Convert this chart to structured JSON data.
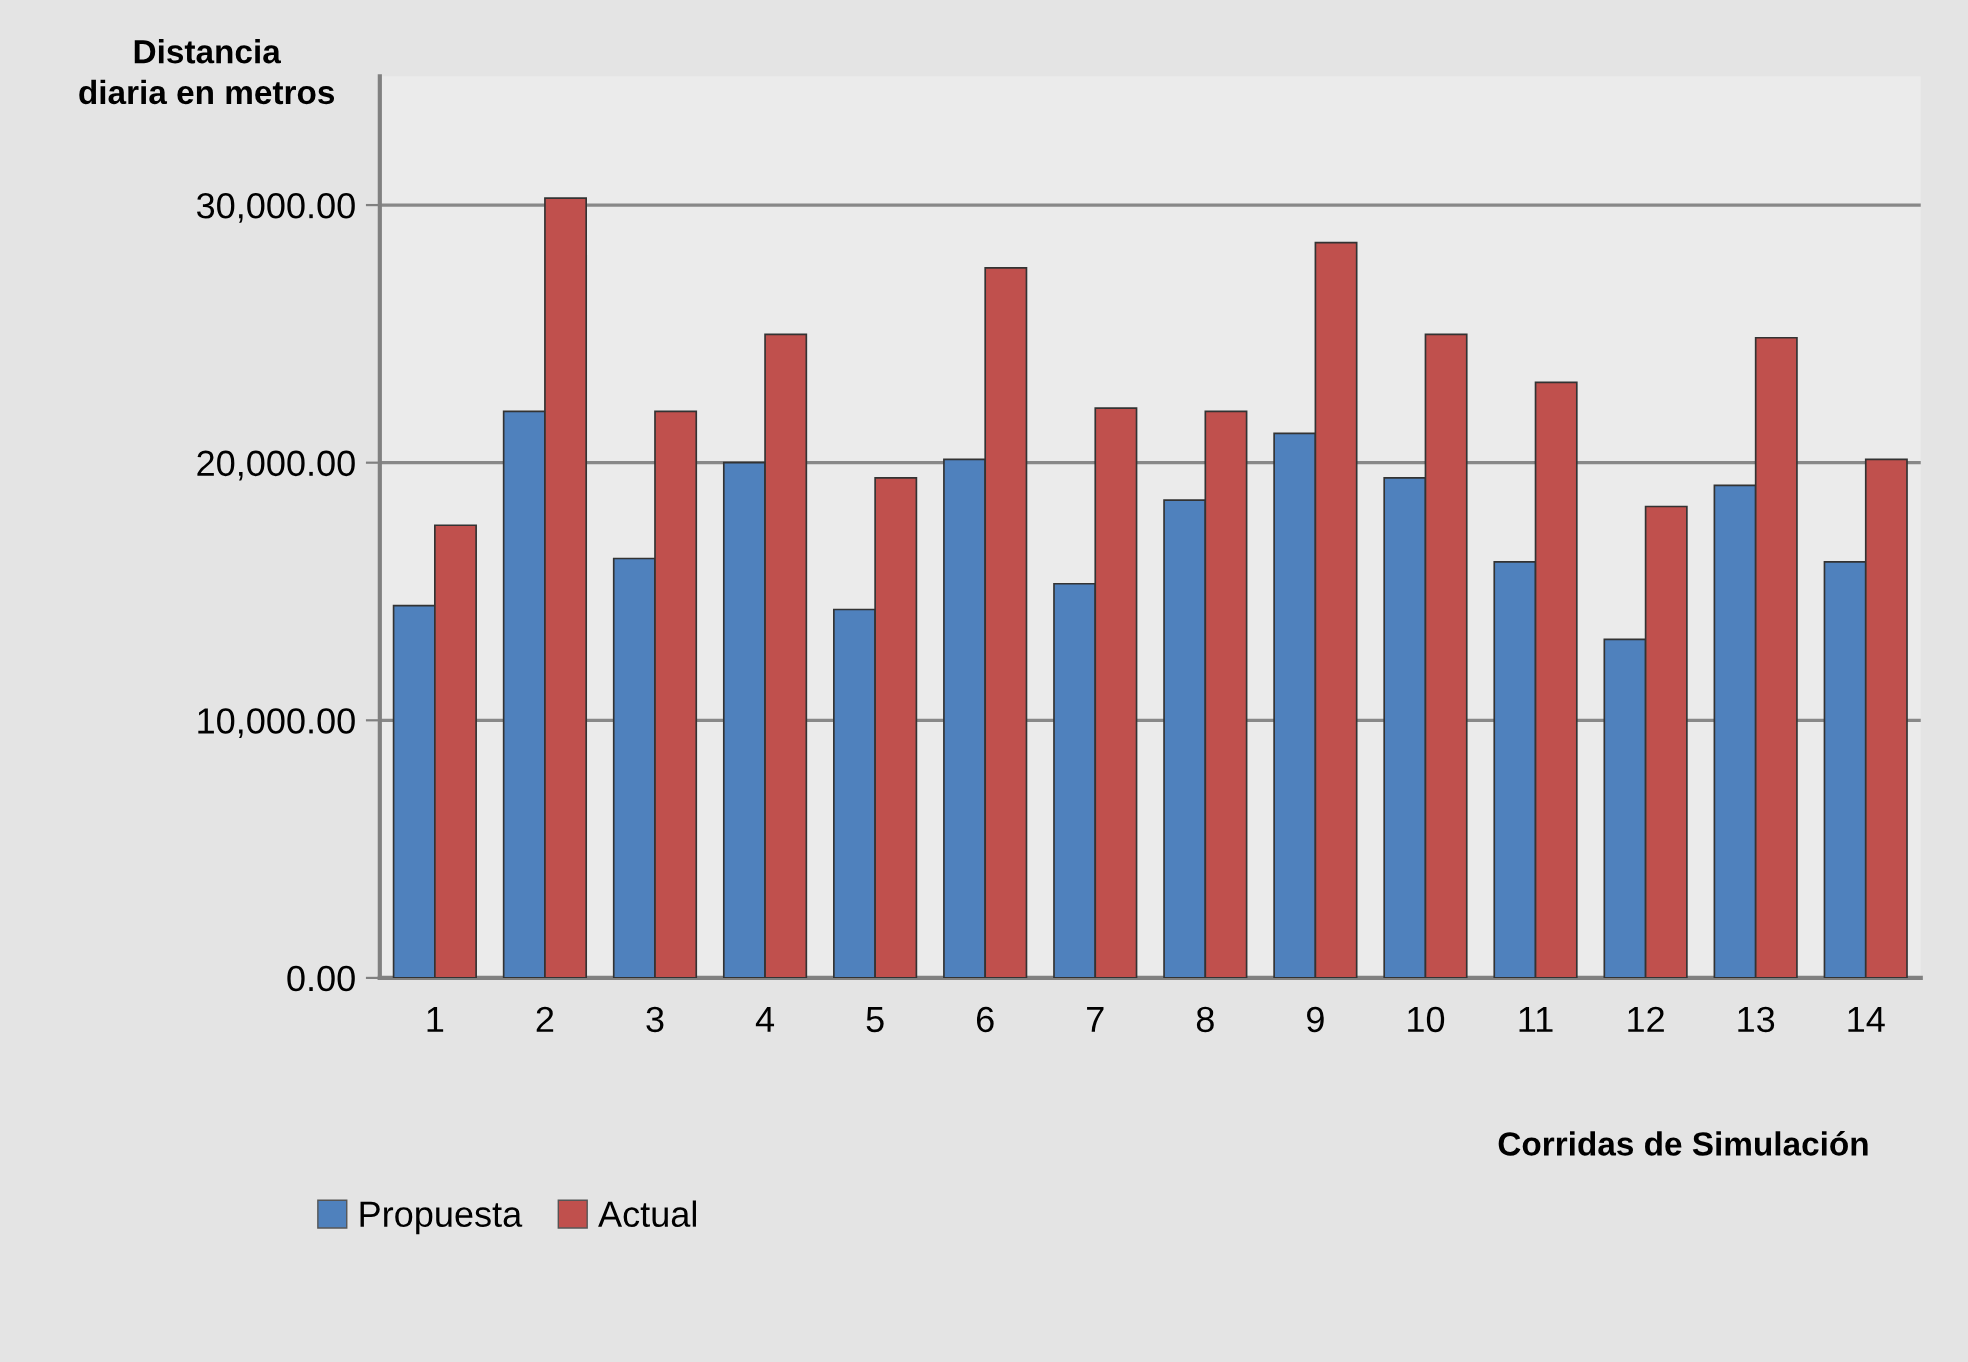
{
  "chart_data": {
    "type": "bar",
    "xlabel": "Corridas de Simulación",
    "ylabel": "Distancia\ndiaria en metros",
    "categories": [
      "1",
      "2",
      "3",
      "4",
      "5",
      "6",
      "7",
      "8",
      "9",
      "10",
      "11",
      "12",
      "13",
      "14"
    ],
    "series": [
      {
        "name": "Propuesta",
        "color": "#4f81bd",
        "values": [
          14450,
          21990,
          16280,
          20000,
          14300,
          20130,
          15300,
          18550,
          21140,
          19410,
          16150,
          13140,
          19120,
          16150
        ]
      },
      {
        "name": "Actual",
        "color": "#c0504d",
        "values": [
          17570,
          30270,
          21990,
          24980,
          19410,
          27560,
          22120,
          21990,
          28540,
          24980,
          23120,
          18300,
          24850,
          20130
        ]
      }
    ],
    "ylim": [
      0,
      35000
    ],
    "yticks": [
      {
        "value": 0,
        "label": "0.00"
      },
      {
        "value": 10000,
        "label": "10,000.00"
      },
      {
        "value": 20000,
        "label": "20,000.00"
      },
      {
        "value": 30000,
        "label": "30,000.00"
      }
    ],
    "grid": "y",
    "legend": "bottom left"
  }
}
